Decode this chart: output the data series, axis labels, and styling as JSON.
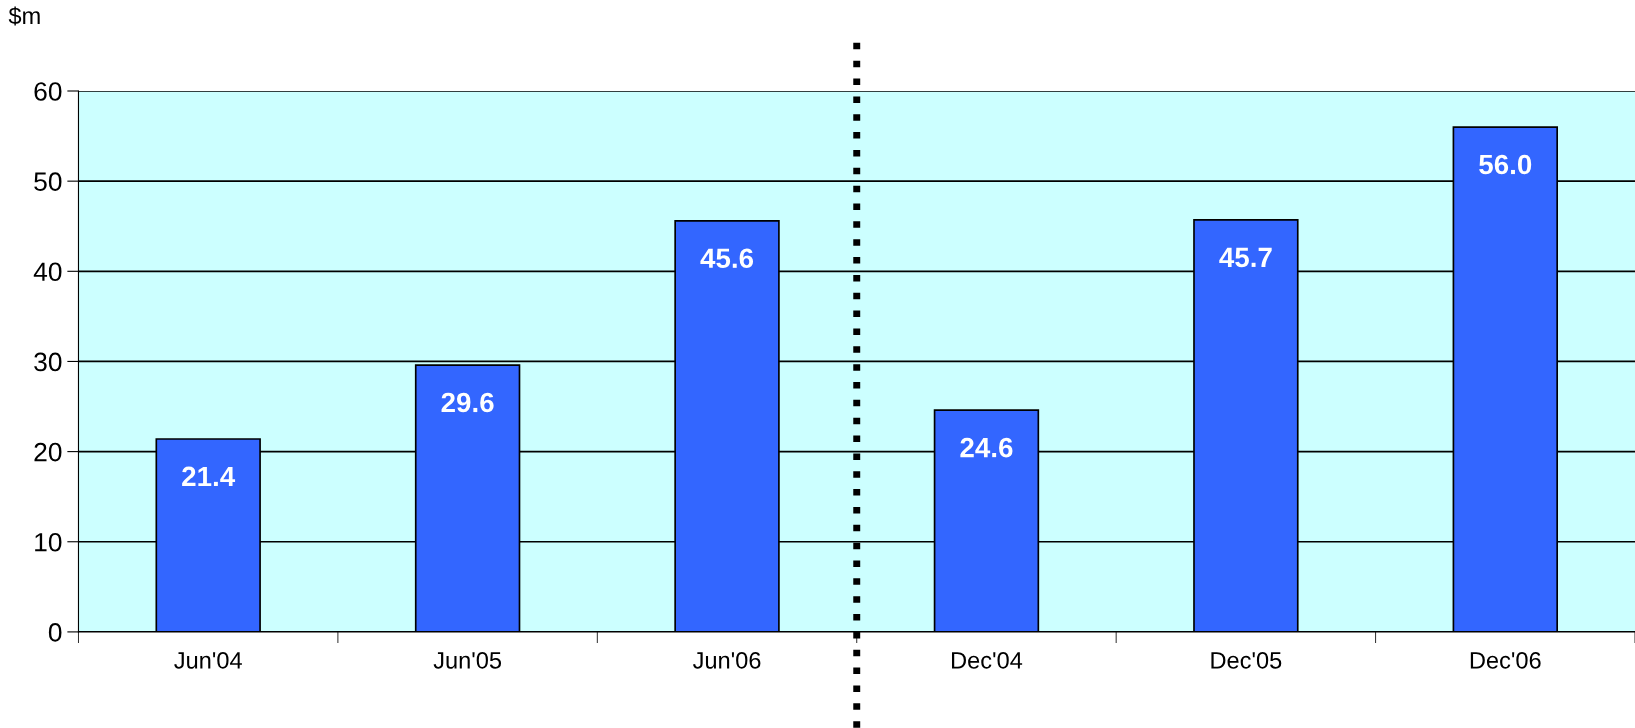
{
  "chart_data": {
    "type": "bar",
    "ylabel": "$m",
    "categories": [
      "Jun'04",
      "Jun'05",
      "Jun'06",
      "Dec'04",
      "Dec'05",
      "Dec'06"
    ],
    "values": [
      21.4,
      29.6,
      45.6,
      24.6,
      45.7,
      56.0
    ],
    "value_labels": [
      "21.4",
      "29.6",
      "45.6",
      "24.6",
      "45.7",
      "56.0"
    ],
    "color": "#3366ff",
    "ylim": [
      0,
      60
    ],
    "yticks": [
      0,
      10,
      20,
      30,
      40,
      50,
      60
    ],
    "grid": "y"
  }
}
